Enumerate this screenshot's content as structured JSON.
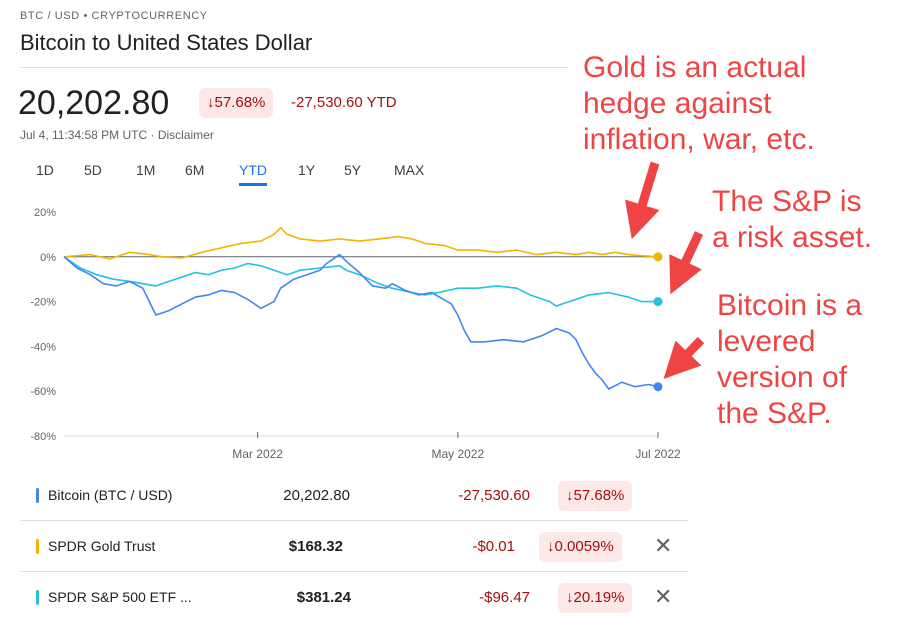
{
  "header": {
    "breadcrumb": "BTC / USD • CRYPTOCURRENCY",
    "title": "Bitcoin to United States Dollar",
    "price": "20,202.80",
    "pct_change": "↓57.68%",
    "abs_change": "-27,530.60 YTD",
    "timestamp": "Jul 4, 11:34:58 PM UTC · Disclaimer"
  },
  "ranges": [
    "1D",
    "5D",
    "1M",
    "6M",
    "YTD",
    "1Y",
    "5Y",
    "MAX"
  ],
  "active_range": "YTD",
  "colors": {
    "bitcoin": "#4285f4",
    "gold": "#f4b400",
    "sp500": "#24c1e0",
    "negative": "#a50e0e",
    "annotation": "#ef4444"
  },
  "chart_data": {
    "type": "line",
    "y_ticks": [
      "20%",
      "0%",
      "-20%",
      "-40%",
      "-60%",
      "-80%"
    ],
    "y_tick_values": [
      20,
      0,
      -20,
      -40,
      -60,
      -80
    ],
    "ylim": [
      -80,
      20
    ],
    "x_ticks": [
      "Mar 2022",
      "May 2022",
      "Jul 2022"
    ],
    "x_tick_days": [
      59,
      120,
      181
    ],
    "xlim": [
      0,
      181
    ],
    "series": [
      {
        "name": "SPDR Gold Trust",
        "color": "#f4b400",
        "points": [
          [
            0,
            0
          ],
          [
            8,
            1
          ],
          [
            14,
            -1
          ],
          [
            20,
            2
          ],
          [
            26,
            1
          ],
          [
            30,
            0
          ],
          [
            36,
            -0.5
          ],
          [
            42,
            2
          ],
          [
            48,
            4
          ],
          [
            54,
            6
          ],
          [
            60,
            7
          ],
          [
            64,
            10
          ],
          [
            66,
            13
          ],
          [
            68,
            10
          ],
          [
            72,
            8
          ],
          [
            78,
            7
          ],
          [
            84,
            8
          ],
          [
            90,
            7
          ],
          [
            96,
            8
          ],
          [
            102,
            9
          ],
          [
            106,
            8
          ],
          [
            110,
            6
          ],
          [
            116,
            5
          ],
          [
            120,
            3
          ],
          [
            126,
            3
          ],
          [
            132,
            2
          ],
          [
            138,
            3
          ],
          [
            144,
            1
          ],
          [
            150,
            2
          ],
          [
            156,
            1
          ],
          [
            160,
            2
          ],
          [
            164,
            1
          ],
          [
            168,
            2
          ],
          [
            172,
            1
          ],
          [
            176,
            0.5
          ],
          [
            181,
            0
          ]
        ]
      },
      {
        "name": "SPDR S&P 500 ETF ...",
        "color": "#24c1e0",
        "points": [
          [
            0,
            0
          ],
          [
            5,
            -5
          ],
          [
            10,
            -8
          ],
          [
            15,
            -10
          ],
          [
            20,
            -11
          ],
          [
            24,
            -12
          ],
          [
            28,
            -13
          ],
          [
            32,
            -11
          ],
          [
            36,
            -9
          ],
          [
            40,
            -7
          ],
          [
            44,
            -8
          ],
          [
            48,
            -6
          ],
          [
            52,
            -5
          ],
          [
            56,
            -3
          ],
          [
            60,
            -4
          ],
          [
            64,
            -6
          ],
          [
            68,
            -8
          ],
          [
            72,
            -6
          ],
          [
            78,
            -5
          ],
          [
            84,
            -4
          ],
          [
            86,
            -6
          ],
          [
            90,
            -8
          ],
          [
            96,
            -12
          ],
          [
            100,
            -14
          ],
          [
            106,
            -16
          ],
          [
            110,
            -17
          ],
          [
            114,
            -16
          ],
          [
            120,
            -14
          ],
          [
            126,
            -14
          ],
          [
            132,
            -13
          ],
          [
            138,
            -14
          ],
          [
            142,
            -17
          ],
          [
            144,
            -18
          ],
          [
            148,
            -20
          ],
          [
            150,
            -22
          ],
          [
            152,
            -21
          ],
          [
            156,
            -19
          ],
          [
            160,
            -17
          ],
          [
            166,
            -16
          ],
          [
            172,
            -18
          ],
          [
            176,
            -20
          ],
          [
            181,
            -20
          ]
        ]
      },
      {
        "name": "Bitcoin (BTC / USD)",
        "color": "#4285f4",
        "points": [
          [
            0,
            0
          ],
          [
            4,
            -5
          ],
          [
            8,
            -8
          ],
          [
            12,
            -12
          ],
          [
            16,
            -13
          ],
          [
            20,
            -11
          ],
          [
            24,
            -14
          ],
          [
            26,
            -20
          ],
          [
            28,
            -26
          ],
          [
            32,
            -24
          ],
          [
            36,
            -21
          ],
          [
            40,
            -18
          ],
          [
            44,
            -17
          ],
          [
            48,
            -15
          ],
          [
            52,
            -16
          ],
          [
            56,
            -19
          ],
          [
            60,
            -23
          ],
          [
            64,
            -20
          ],
          [
            66,
            -14
          ],
          [
            70,
            -10
          ],
          [
            74,
            -8
          ],
          [
            78,
            -6
          ],
          [
            80,
            -3
          ],
          [
            84,
            1
          ],
          [
            86,
            -2
          ],
          [
            90,
            -7
          ],
          [
            94,
            -13
          ],
          [
            98,
            -14
          ],
          [
            100,
            -12
          ],
          [
            104,
            -15
          ],
          [
            108,
            -17
          ],
          [
            112,
            -16
          ],
          [
            118,
            -21
          ],
          [
            120,
            -26
          ],
          [
            122,
            -33
          ],
          [
            124,
            -38
          ],
          [
            128,
            -38
          ],
          [
            134,
            -37
          ],
          [
            140,
            -38
          ],
          [
            146,
            -35
          ],
          [
            150,
            -32
          ],
          [
            154,
            -34
          ],
          [
            156,
            -37
          ],
          [
            158,
            -43
          ],
          [
            160,
            -48
          ],
          [
            162,
            -52
          ],
          [
            164,
            -55
          ],
          [
            166,
            -59
          ],
          [
            170,
            -56
          ],
          [
            174,
            -58
          ],
          [
            178,
            -57
          ],
          [
            181,
            -58
          ]
        ]
      }
    ]
  },
  "legend": [
    {
      "name": "Bitcoin (BTC / USD)",
      "price": "20,202.80",
      "change": "-27,530.60",
      "pct": "↓57.68%",
      "color": "#4285f4",
      "removable": false
    },
    {
      "name": "SPDR Gold Trust",
      "price": "$168.32",
      "change": "-$0.01",
      "pct": "↓0.0059%",
      "color": "#f4b400",
      "removable": true
    },
    {
      "name": "SPDR S&P 500 ETF ...",
      "price": "$381.24",
      "change": "-$96.47",
      "pct": "↓20.19%",
      "color": "#24c1e0",
      "removable": true
    }
  ],
  "remove_icon": "close-icon",
  "annotations": {
    "gold": [
      "Gold is an actual",
      "hedge against",
      "inflation, war, etc."
    ],
    "sp500": [
      "The S&P is",
      "a risk asset."
    ],
    "bitcoin": [
      "Bitcoin is a",
      "levered",
      "version of",
      "the S&P."
    ]
  }
}
